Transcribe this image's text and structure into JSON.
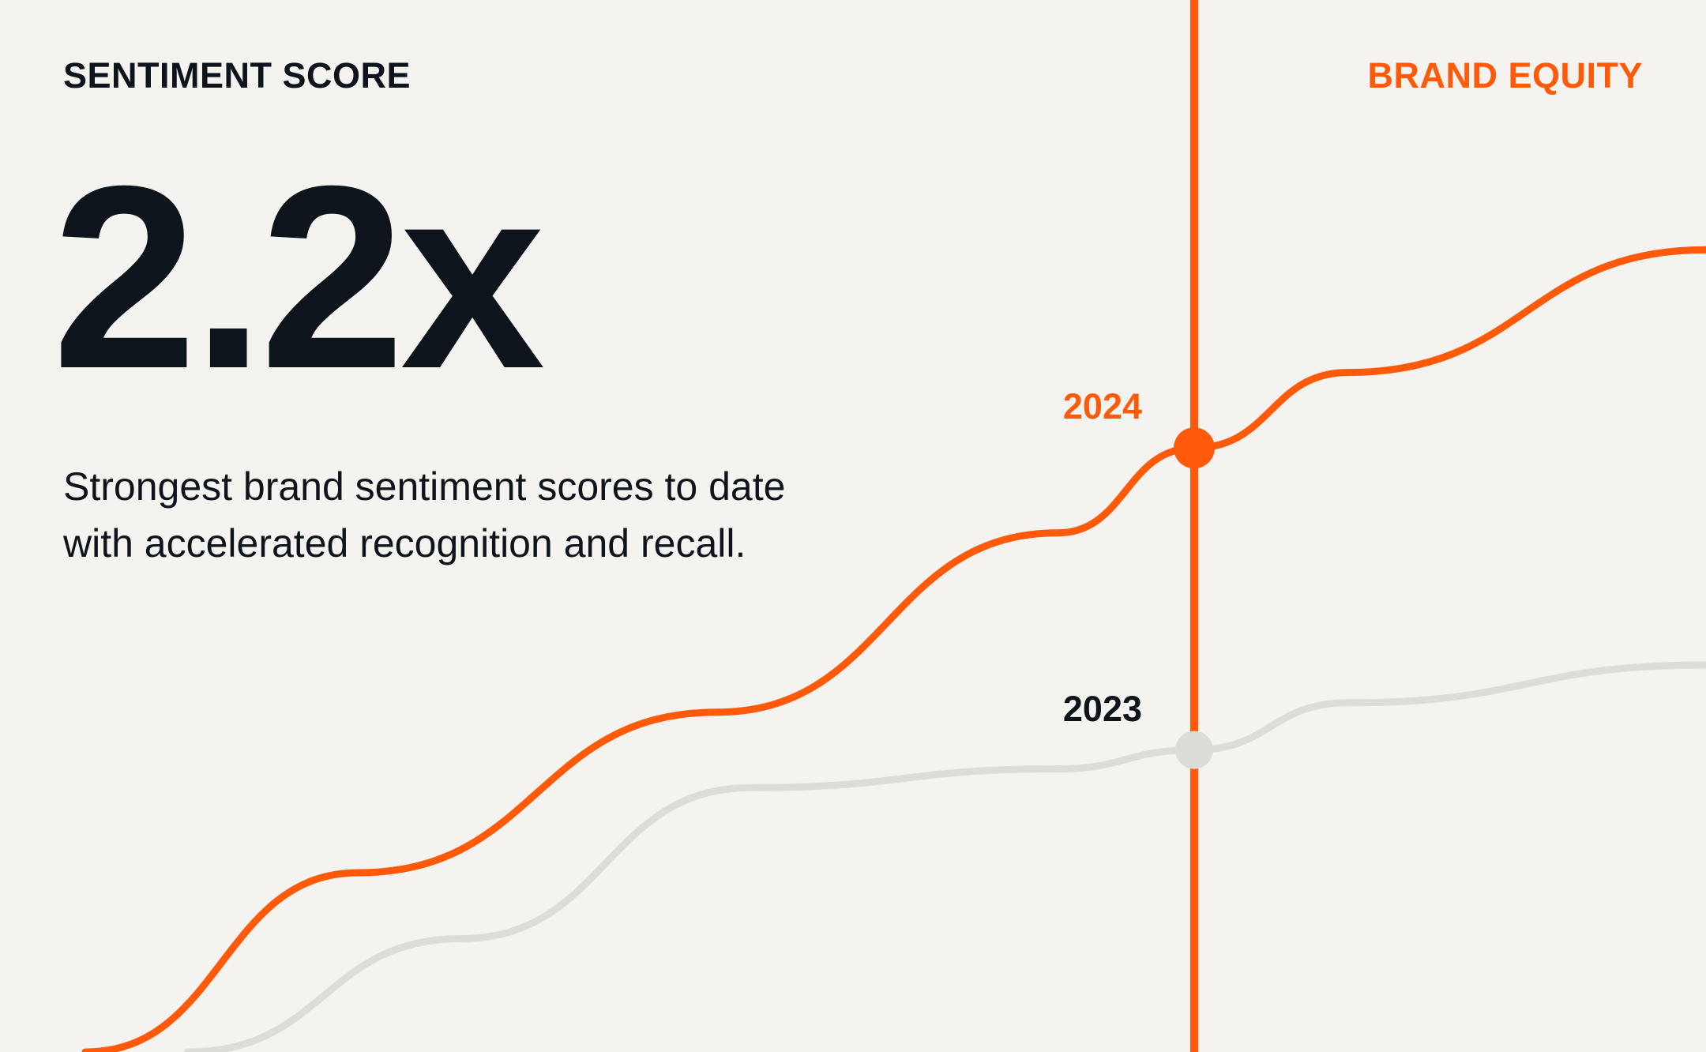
{
  "header": {
    "kicker_left": "SENTIMENT SCORE",
    "kicker_right": "BRAND EQUITY"
  },
  "stat": {
    "value": "2.2x",
    "description": "Strongest brand sentiment scores to date with accelerated recognition and recall."
  },
  "colors": {
    "background": "#f4f3f0",
    "text": "#0e141b",
    "accent": "#ff5a0a",
    "muted_line": "#dddcd8"
  },
  "chart_data": {
    "type": "line",
    "title": "",
    "xlabel": "",
    "ylabel": "",
    "grid": false,
    "legend": "none",
    "highlight_x": 0.7,
    "series": [
      {
        "name": "2024",
        "color": "#ff5a0a",
        "x": [
          0.05,
          0.21,
          0.42,
          0.62,
          0.7,
          0.79,
          1.0
        ],
        "y": [
          0.0,
          0.19,
          0.36,
          0.55,
          0.64,
          0.72,
          0.85
        ]
      },
      {
        "name": "2023",
        "color": "#dddcd8",
        "x": [
          0.11,
          0.27,
          0.44,
          0.62,
          0.7,
          0.79,
          1.0
        ],
        "y": [
          0.0,
          0.12,
          0.28,
          0.3,
          0.32,
          0.37,
          0.41
        ]
      }
    ]
  }
}
